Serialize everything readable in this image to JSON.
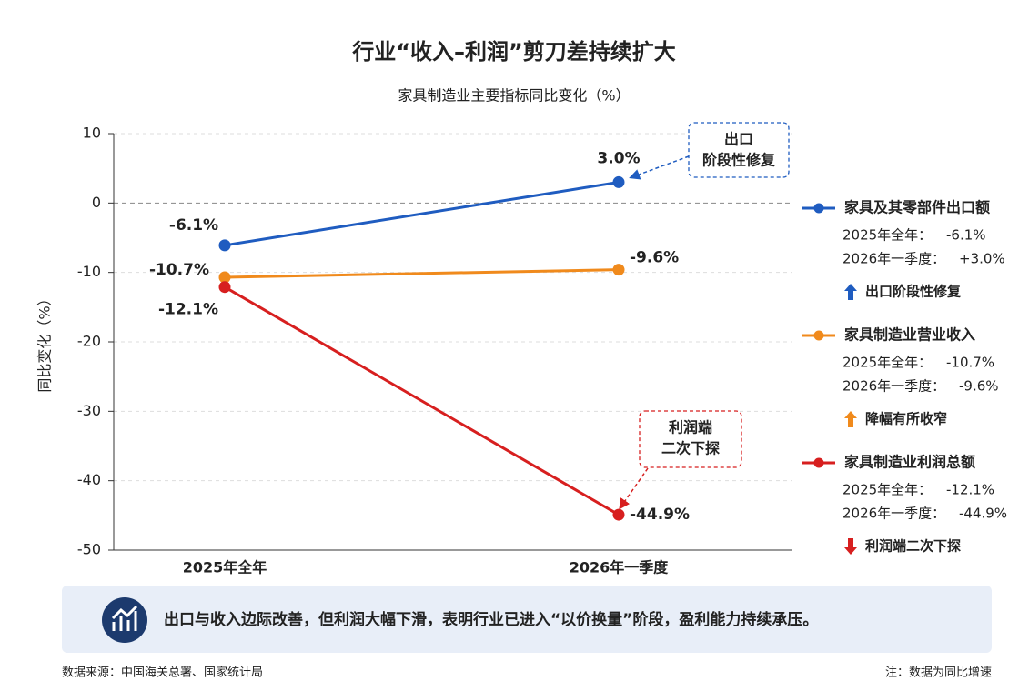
{
  "chart_data": {
    "type": "line",
    "title": "行业“收入–利润”剪刀差持续扩大",
    "subtitle": "家具制造业主要指标同比变化（%）",
    "y_label": "同比变化（%）",
    "categories": [
      "2025年全年",
      "2026年一季度"
    ],
    "ylim": [
      -50,
      10
    ],
    "yticks": [
      10,
      0,
      -10,
      -20,
      -30,
      -40,
      -50
    ],
    "grid": true,
    "panel_periods": [
      "2025年全年：",
      "2026年一季度："
    ],
    "series": [
      {
        "name": "家具及其零部件出口额",
        "color": "#1f5cc0",
        "values": [
          -6.1,
          3.0
        ],
        "value_labels": [
          "-6.1%",
          "3.0%"
        ],
        "panel_labels": [
          "-6.1%",
          "+3.0%"
        ],
        "note": "出口阶段性修复",
        "trend": "up"
      },
      {
        "name": "家具制造业营业收入",
        "color": "#f08a1c",
        "values": [
          -10.7,
          -9.6
        ],
        "value_labels": [
          "-10.7%",
          "-9.6%"
        ],
        "panel_labels": [
          "-10.7%",
          "-9.6%"
        ],
        "note": "降幅有所收窄",
        "trend": "up"
      },
      {
        "name": "家具制造业利润总额",
        "color": "#d71f1f",
        "values": [
          -12.1,
          -44.9
        ],
        "value_labels": [
          "-12.1%",
          "-44.9%"
        ],
        "panel_labels": [
          "-12.1%",
          "-44.9%"
        ],
        "note": "利润端二次下探",
        "trend": "down"
      }
    ],
    "annotations": [
      {
        "lines": [
          "出口",
          "阶段性修复"
        ],
        "color": "#1f5cc0"
      },
      {
        "lines": [
          "利润端",
          "二次下探"
        ],
        "color": "#d71f1f"
      }
    ],
    "summary": "出口与收入边际改善，但利润大幅下滑，表明行业已进入“以价换量”阶段，盈利能力持续承压。",
    "source": "数据来源：中国海关总署、国家统计局",
    "footnote": "注：数据为同比增速"
  }
}
